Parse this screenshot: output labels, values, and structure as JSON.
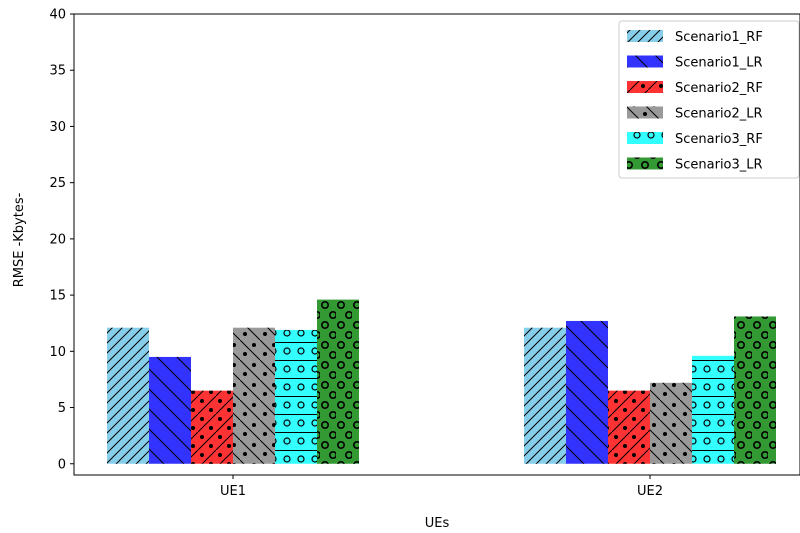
{
  "chart_data": {
    "type": "bar",
    "categories": [
      "UE1",
      "UE2"
    ],
    "xlabel": "UEs",
    "ylabel": "RMSE -Kbytes-",
    "ylim": [
      -1,
      40
    ],
    "yticks": [
      0,
      5,
      10,
      15,
      20,
      25,
      30,
      35,
      40
    ],
    "legend_position": "top-right",
    "grid": false,
    "series": [
      {
        "name": "Scenario1_RF",
        "values": [
          12.1,
          12.1
        ],
        "color": "#87ceeb",
        "hatch": "diagonal-forward"
      },
      {
        "name": "Scenario1_LR",
        "values": [
          9.5,
          12.7
        ],
        "color": "#3333ff",
        "hatch": "diagonal-back"
      },
      {
        "name": "Scenario2_RF",
        "values": [
          6.5,
          6.5
        ],
        "color": "#ff3333",
        "hatch": "slash-dots"
      },
      {
        "name": "Scenario2_LR",
        "values": [
          12.1,
          7.2
        ],
        "color": "#999999",
        "hatch": "backslash-dots"
      },
      {
        "name": "Scenario3_RF",
        "values": [
          11.9,
          9.6
        ],
        "color": "#33ffff",
        "hatch": "horizontal-circles"
      },
      {
        "name": "Scenario3_LR",
        "values": [
          14.6,
          13.1
        ],
        "color": "#339933",
        "hatch": "circles"
      }
    ]
  }
}
